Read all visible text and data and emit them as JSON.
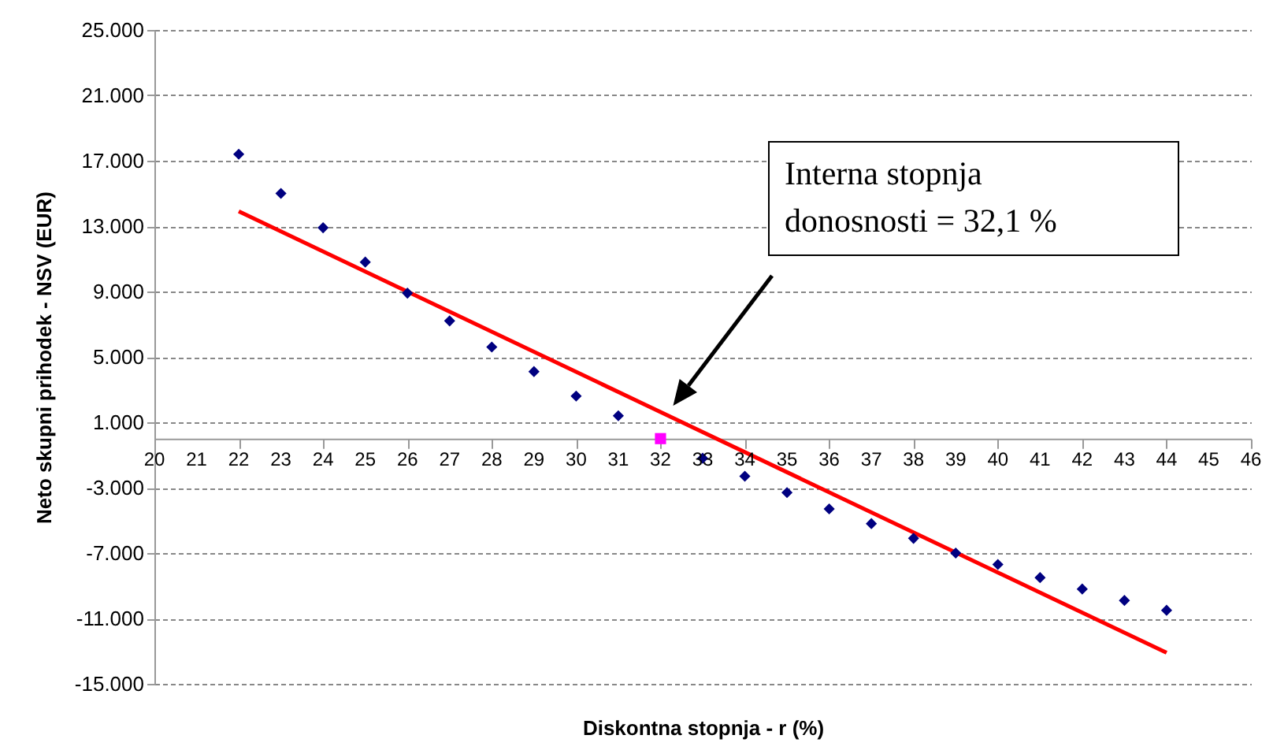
{
  "chart_data": {
    "type": "scatter",
    "xlabel": "Diskontna stopnja - r (%)",
    "ylabel": "Neto skupni prihodek - NSV (EUR)",
    "xlim": [
      20,
      46
    ],
    "xticks": [
      20,
      21,
      22,
      23,
      24,
      25,
      26,
      27,
      28,
      29,
      30,
      31,
      32,
      33,
      34,
      35,
      36,
      37,
      38,
      39,
      40,
      41,
      42,
      43,
      44,
      45,
      46
    ],
    "ylim": [
      -15000,
      25000
    ],
    "yticks": [
      {
        "value": 25000,
        "label": "25.000"
      },
      {
        "value": 21000,
        "label": "21.000"
      },
      {
        "value": 17000,
        "label": "17.000"
      },
      {
        "value": 13000,
        "label": "13.000"
      },
      {
        "value": 9000,
        "label": "9.000"
      },
      {
        "value": 5000,
        "label": "5.000"
      },
      {
        "value": 1000,
        "label": "1.000"
      },
      {
        "value": -3000,
        "label": "-3.000"
      },
      {
        "value": -7000,
        "label": "-7.000"
      },
      {
        "value": -11000,
        "label": "-11.000"
      },
      {
        "value": -15000,
        "label": "-15.000"
      }
    ],
    "grid": "y",
    "series": [
      {
        "type": "line",
        "marker": "none",
        "line_style": "solid",
        "color": "#ff0000",
        "x": [
          22,
          44
        ],
        "values": [
          13900,
          -13100
        ]
      },
      {
        "marker": "diamond",
        "color": "#000080",
        "x": [
          22,
          23,
          24,
          25,
          26,
          27,
          28,
          29,
          30,
          31,
          33,
          34,
          35,
          36,
          37,
          38,
          39,
          40,
          41,
          42,
          43,
          44
        ],
        "values": [
          17400,
          15000,
          12900,
          10800,
          8900,
          7200,
          5600,
          4100,
          2600,
          1400,
          -1200,
          -2300,
          -3300,
          -4300,
          -5200,
          -6100,
          -7000,
          -7700,
          -8500,
          -9200,
          -9900,
          -10500
        ]
      },
      {
        "marker": "square",
        "color": "#ff00ff",
        "x": [
          32
        ],
        "values": [
          0
        ]
      }
    ],
    "annotations": [
      "Interna stopnja donosnosti = 32,1 %"
    ]
  }
}
